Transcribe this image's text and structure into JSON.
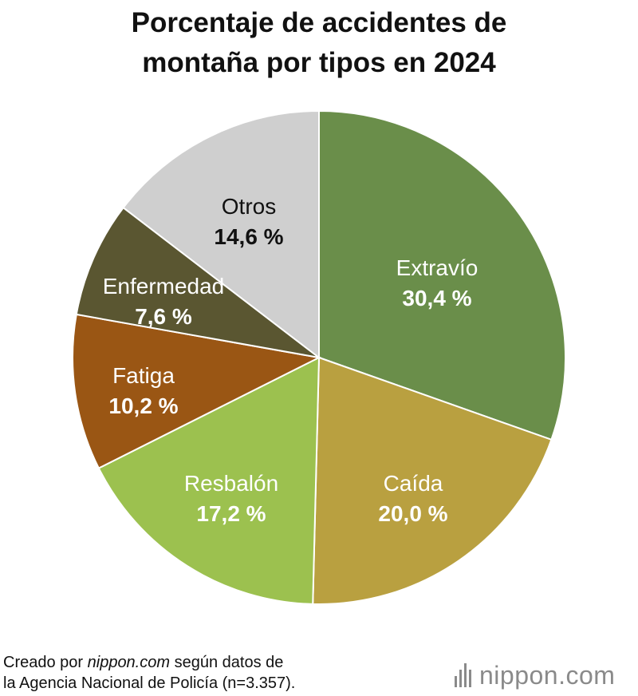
{
  "chart_data": {
    "type": "pie",
    "title": [
      "Porcentaje de accidentes de",
      "montaña por tipos en 2024"
    ],
    "unit": "%",
    "slices": [
      {
        "name": "Extravío",
        "value": 30.4,
        "label": "30,4 %",
        "color": "#6a8e4a",
        "text_color": "#ffffff"
      },
      {
        "name": "Caída",
        "value": 20.0,
        "label": "20,0 %",
        "color": "#b9a040",
        "text_color": "#ffffff"
      },
      {
        "name": "Resbalón",
        "value": 17.2,
        "label": "17,2 %",
        "color": "#9cc14f",
        "text_color": "#ffffff"
      },
      {
        "name": "Fatiga",
        "value": 10.2,
        "label": "10,2 %",
        "color": "#9a5614",
        "text_color": "#ffffff"
      },
      {
        "name": "Enfermedad",
        "value": 7.6,
        "label": "7,6 %",
        "color": "#5a5631",
        "text_color": "#ffffff"
      },
      {
        "name": "Otros",
        "value": 14.6,
        "label": "14,6 %",
        "color": "#cfcfcf",
        "text_color": "#111111"
      }
    ]
  },
  "source": {
    "prefix": "Creado por ",
    "site": "nippon.com",
    "middle": " según datos de",
    "line2": "la Agencia Nacional de Policía (n=3.357)."
  },
  "logo": {
    "text": "nippon.com"
  }
}
